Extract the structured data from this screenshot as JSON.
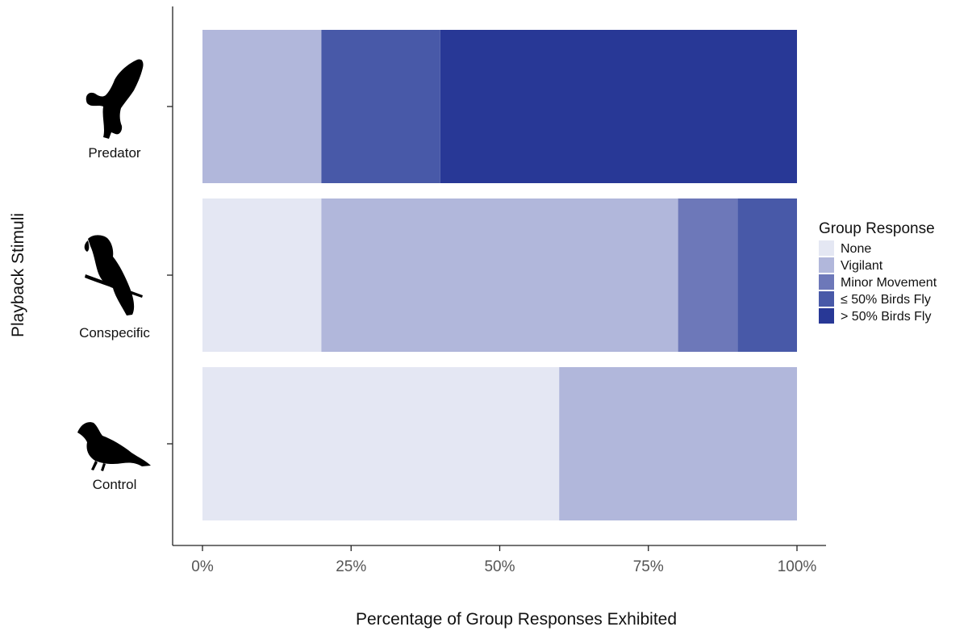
{
  "chart_data": {
    "type": "bar",
    "orientation": "horizontal",
    "stacked": true,
    "title": "",
    "xlabel": "Percentage of Group Responses Exhibited",
    "ylabel": "Playback Stimuli",
    "xlim": [
      0,
      100
    ],
    "x_ticks": [
      "0%",
      "25%",
      "50%",
      "75%",
      "100%"
    ],
    "categories": [
      "Predator",
      "Conspecific",
      "Control"
    ],
    "category_icons": [
      "raptor-silhouette-icon",
      "parrot-silhouette-icon",
      "dove-silhouette-icon"
    ],
    "legend": {
      "title": "Group Response",
      "position": "right"
    },
    "grid": false,
    "series": [
      {
        "name": "None",
        "color": "#e4e7f3",
        "values": [
          0,
          20,
          60
        ]
      },
      {
        "name": "Vigilant",
        "color": "#b1b7db",
        "values": [
          20,
          60,
          40
        ]
      },
      {
        "name": "Minor Movement",
        "color": "#6d78b9",
        "values": [
          0,
          10,
          0
        ]
      },
      {
        "name": "≤ 50% Birds Fly",
        "color": "#4859a8",
        "values": [
          20,
          10,
          0
        ]
      },
      {
        "name": "> 50% Birds Fly",
        "color": "#283896",
        "values": [
          60,
          0,
          0
        ]
      }
    ]
  }
}
